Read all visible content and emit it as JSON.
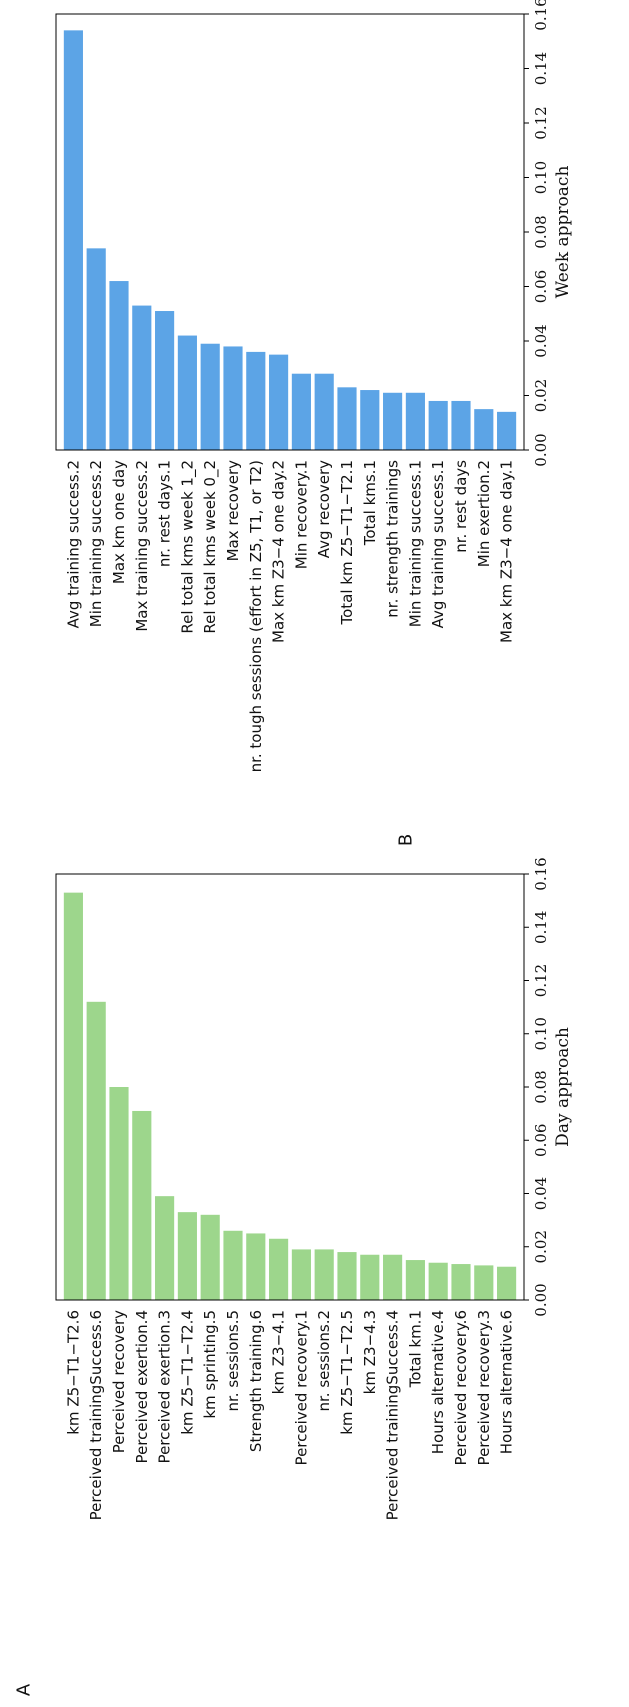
{
  "chart_data": [
    {
      "type": "bar",
      "orientation": "horizontal (figure rotated 90°)",
      "panel_label": "A",
      "xlabel": "Day approach",
      "xlim": [
        0,
        0.16
      ],
      "ticks": [
        "0.00",
        "0.02",
        "0.04",
        "0.06",
        "0.08",
        "0.10",
        "0.12",
        "0.14",
        "0.16"
      ],
      "tick_values": [
        0,
        0.02,
        0.04,
        0.06,
        0.08,
        0.1,
        0.12,
        0.14,
        0.16
      ],
      "color": "#9dd68c",
      "categories": [
        "km Z5−T1−T2.6",
        "Perceived trainingSuccess.6",
        "Perceived recovery",
        "Perceived exertion.4",
        "Perceived exertion.3",
        "km Z5−T1−T2.4",
        "km sprinting.5",
        "nr. sessions.5",
        "Strength training.6",
        "km Z3−4.1",
        "Perceived recovery.1",
        "nr. sessions.2",
        "km Z5−T1−T2.5",
        "km Z3−4.3",
        "Perceived trainingSuccess.4",
        "Total km.1",
        "Hours alternative.4",
        "Perceived recovery.6",
        "Perceived recovery.3",
        "Hours alternative.6"
      ],
      "values": [
        0.153,
        0.112,
        0.08,
        0.071,
        0.039,
        0.033,
        0.032,
        0.026,
        0.025,
        0.023,
        0.019,
        0.019,
        0.018,
        0.017,
        0.017,
        0.015,
        0.014,
        0.0135,
        0.013,
        0.0125
      ]
    },
    {
      "type": "bar",
      "orientation": "horizontal (figure rotated 90°)",
      "panel_label": "B",
      "xlabel": "Week approach",
      "xlim": [
        0,
        0.16
      ],
      "ticks": [
        "0.00",
        "0.02",
        "0.04",
        "0.06",
        "0.08",
        "0.10",
        "0.12",
        "0.14",
        "0.16"
      ],
      "tick_values": [
        0,
        0.02,
        0.04,
        0.06,
        0.08,
        0.1,
        0.12,
        0.14,
        0.16
      ],
      "color": "#5ca4e6",
      "categories": [
        "Avg training success.2",
        "Min training success.2",
        "Max km one day",
        "Max training success.2",
        "nr. rest days.1",
        "Rel total kms week 1_2",
        "Rel total kms week 0_2",
        "Max recovery",
        "nr. tough sessions (effort in Z5, T1, or T2)",
        "Max km Z3−4 one day.2",
        "Min recovery.1",
        "Avg recovery",
        "Total km Z5−T1−T2.1",
        "Total kms.1",
        "nr. strength trainings",
        "Min training success.1",
        "Avg training success.1",
        "nr. rest days",
        "Min exertion.2",
        "Max km Z3−4 one day.1"
      ],
      "values": [
        0.154,
        0.074,
        0.062,
        0.053,
        0.051,
        0.042,
        0.039,
        0.038,
        0.036,
        0.035,
        0.028,
        0.028,
        0.023,
        0.022,
        0.021,
        0.021,
        0.018,
        0.018,
        0.015,
        0.014
      ]
    }
  ]
}
